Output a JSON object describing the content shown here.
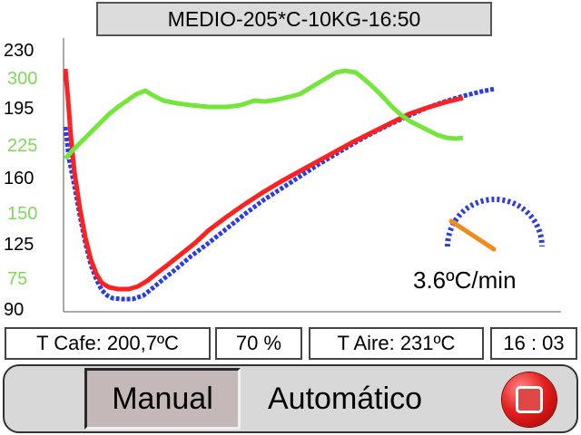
{
  "profile_title": "MEDIO-205*C-10KG-16:50",
  "chart": {
    "left_axis_ticks": [
      "230",
      "195",
      "160",
      "125",
      "90"
    ],
    "right_axis_ticks": [
      "300",
      "225",
      "150",
      "75"
    ],
    "colors": {
      "left_axis": "#000000",
      "right_axis": "#7ed957",
      "coffee_temp": "#ff2020",
      "coffee_reference": "#2a3ce8",
      "air_temp": "#74e53a",
      "gauge_dots": "#2a3ce8",
      "gauge_needle": "#f28a1c"
    }
  },
  "rate_of_rise": "3.6ºC/min",
  "status": {
    "coffee_temp": "T Cafe: 200,7ºC",
    "power": "70 %",
    "air_temp": "T Aire: 231ºC",
    "elapsed_time": "16 : 03"
  },
  "controls": {
    "manual_label": "Manual",
    "auto_label": "Automático",
    "stop_icon": "stop-icon"
  }
}
